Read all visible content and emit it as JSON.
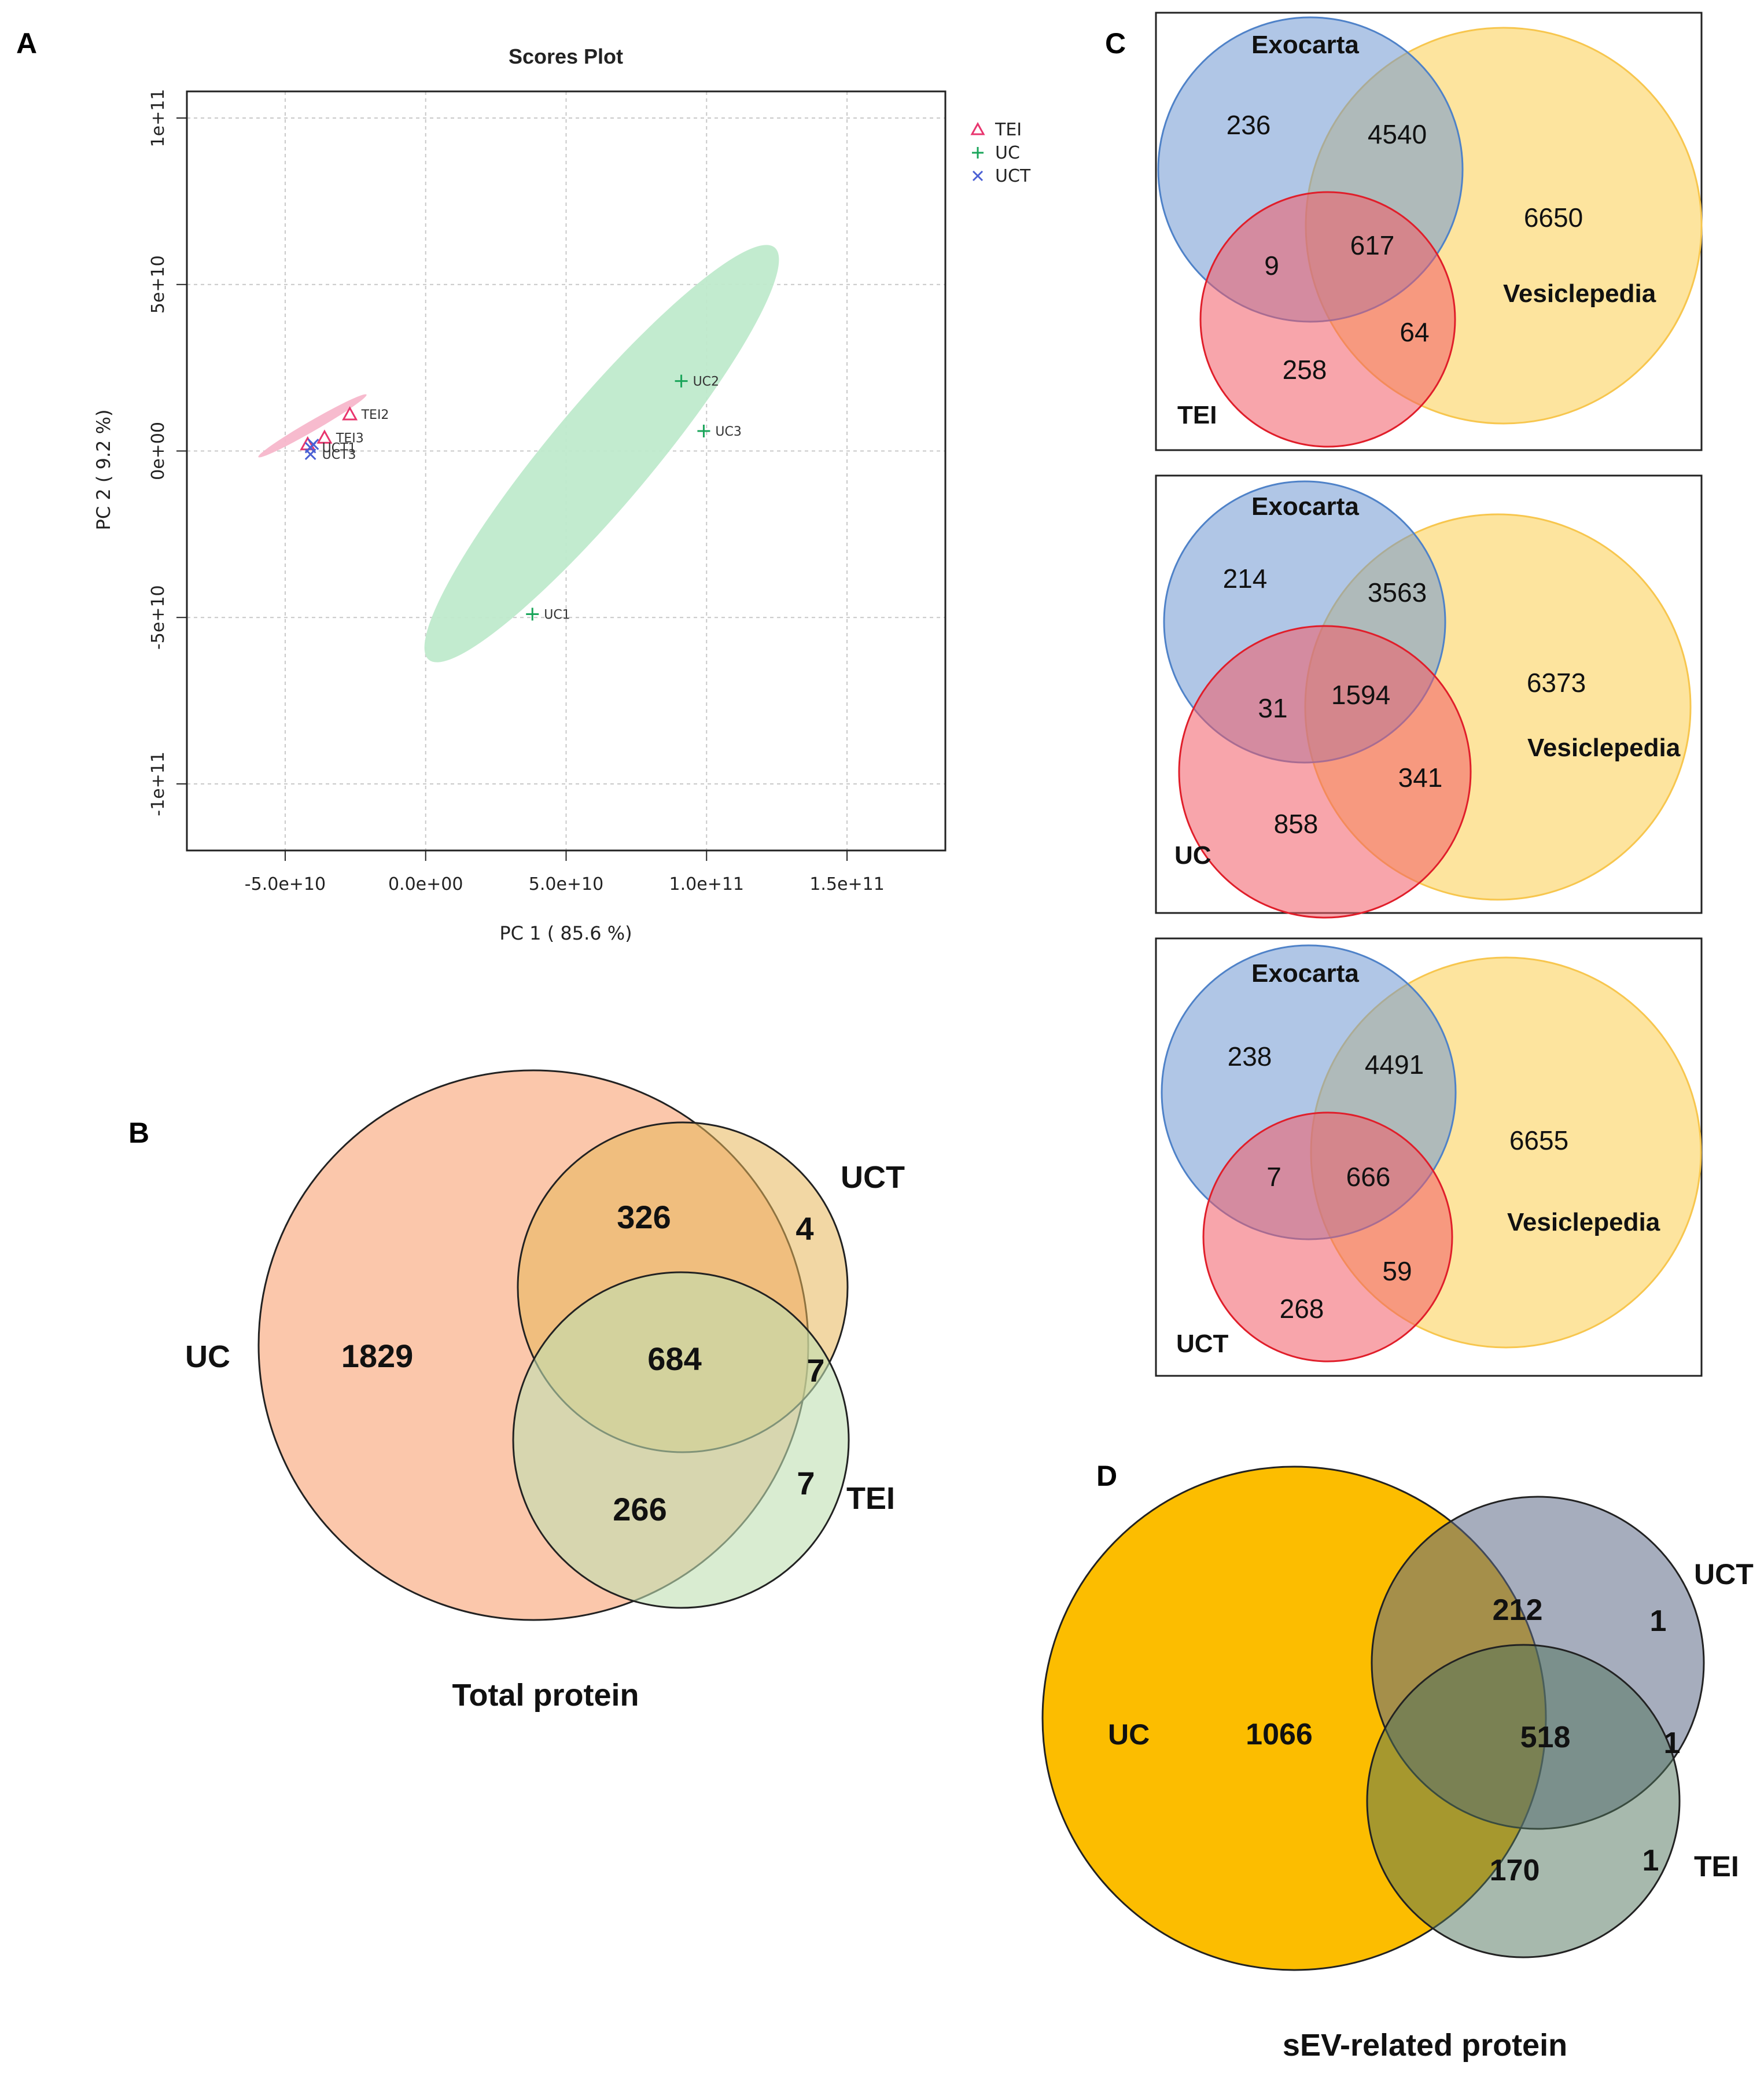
{
  "panel_labels": {
    "a": "A",
    "b": "B",
    "c": "C",
    "d": "D"
  },
  "chart_data": [
    {
      "type": "scatter",
      "panel": "A",
      "title": "Scores Plot",
      "xlabel": "PC 1 ( 85.6 %)",
      "ylabel": "PC 2 ( 9.2 %)",
      "xlim": [
        -85000000000.0,
        185000000000.0
      ],
      "ylim": [
        -120000000000.0,
        108000000000.0
      ],
      "grid": true,
      "legend_position": "top-right",
      "x_ticks": [
        {
          "value": -50000000000.0,
          "label": "-5.0e+10"
        },
        {
          "value": 0,
          "label": "0.0e+00"
        },
        {
          "value": 50000000000.0,
          "label": "5.0e+10"
        },
        {
          "value": 100000000000.0,
          "label": "1.0e+11"
        },
        {
          "value": 150000000000.0,
          "label": "1.5e+11"
        }
      ],
      "y_ticks": [
        {
          "value": -100000000000.0,
          "label": "-1e+11"
        },
        {
          "value": -50000000000.0,
          "label": "-5e+10"
        },
        {
          "value": 0,
          "label": "0e+00"
        },
        {
          "value": 50000000000.0,
          "label": "5e+10"
        },
        {
          "value": 100000000000.0,
          "label": "1e+11"
        }
      ],
      "series": [
        {
          "name": "TEI",
          "marker": "triangle",
          "color": "#e8356e",
          "points": [
            {
              "label": "TEI2",
              "x": -27000000000.0,
              "y": 11000000000.0
            },
            {
              "label": "TEI3",
              "x": -36000000000.0,
              "y": 4000000000.0
            },
            {
              "label": "TEI1",
              "x": -42000000000.0,
              "y": 2000000000.0
            }
          ]
        },
        {
          "name": "UC",
          "marker": "plus",
          "color": "#1aa55a",
          "points": [
            {
              "label": "UC2",
              "x": 91000000000.0,
              "y": 21000000000.0
            },
            {
              "label": "UC3",
              "x": 99000000000.0,
              "y": 6000000000.0
            },
            {
              "label": "UC1",
              "x": 38000000000.0,
              "y": -49000000000.0
            }
          ]
        },
        {
          "name": "UCT",
          "marker": "x",
          "color": "#4a5fd4",
          "points": [
            {
              "label": "UCT1",
              "x": -41000000000.0,
              "y": 1000000000.0
            },
            {
              "label": "UCT2",
              "x": -40000000000.0,
              "y": 2000000000.0
            },
            {
              "label": "UCT3",
              "x": -41000000000.0,
              "y": -1000000000.0
            }
          ]
        }
      ],
      "ellipses": [
        {
          "group": "UC",
          "color": "#bfeacc",
          "center": [
            70000000000.0,
            -10000000000.0
          ],
          "semi_major_data_x": 96000000000.0,
          "semi_minor": "narrow"
        },
        {
          "group": "TEI",
          "color": "#f7b7cb",
          "center": [
            -34000000000.0,
            5000000000.0
          ]
        }
      ],
      "legend": [
        "TEI",
        "UC",
        "UCT"
      ],
      "tick_labels_drawn": {
        "x": [
          "-5.0e+10",
          "0.0e+00",
          "5.0e+10",
          "1.0e+11",
          "1.5e+11"
        ],
        "y": [
          "-1e+11",
          "-5e+10",
          "0e+00",
          "5e+10",
          "1e+11"
        ]
      },
      "point_labels_drawn": [
        "TEI2",
        "TEI3",
        "UCT1",
        "UCT3",
        "UC2",
        "UC3",
        "UC1"
      ]
    },
    {
      "type": "venn",
      "panel": "B",
      "title": "Total protein",
      "sets": [
        "UC",
        "UCT",
        "TEI"
      ],
      "regions": [
        {
          "sets": [
            "UC"
          ],
          "value": "1829"
        },
        {
          "sets": [
            "UC",
            "UCT"
          ],
          "value": "326"
        },
        {
          "sets": [
            "UCT"
          ],
          "value": "4"
        },
        {
          "sets": [
            "UC",
            "UCT",
            "TEI"
          ],
          "value": "684"
        },
        {
          "sets": [
            "UCT",
            "TEI"
          ],
          "value": "7"
        },
        {
          "sets": [
            "UC",
            "TEI"
          ],
          "value": "266"
        },
        {
          "sets": [
            "TEI"
          ],
          "value": "7"
        }
      ]
    },
    {
      "type": "venn",
      "panel": "C",
      "subtitle": "TEI",
      "sets": [
        "Exocarta",
        "Vesiclepedia",
        "TEI"
      ],
      "regions": [
        {
          "sets": [
            "Exocarta"
          ],
          "value": "236"
        },
        {
          "sets": [
            "Exocarta",
            "Vesiclepedia"
          ],
          "value": "4540"
        },
        {
          "sets": [
            "Vesiclepedia"
          ],
          "value": "6650"
        },
        {
          "sets": [
            "Exocarta",
            "TEI"
          ],
          "value": "9"
        },
        {
          "sets": [
            "Exocarta",
            "Vesiclepedia",
            "TEI"
          ],
          "value": "617"
        },
        {
          "sets": [
            "Vesiclepedia",
            "TEI"
          ],
          "value": "64"
        },
        {
          "sets": [
            "TEI"
          ],
          "value": "258"
        }
      ]
    },
    {
      "type": "venn",
      "panel": "C",
      "subtitle": "UC",
      "sets": [
        "Exocarta",
        "Vesiclepedia",
        "UC"
      ],
      "regions": [
        {
          "sets": [
            "Exocarta"
          ],
          "value": "214"
        },
        {
          "sets": [
            "Exocarta",
            "Vesiclepedia"
          ],
          "value": "3563"
        },
        {
          "sets": [
            "Vesiclepedia"
          ],
          "value": "6373"
        },
        {
          "sets": [
            "Exocarta",
            "UC"
          ],
          "value": "31"
        },
        {
          "sets": [
            "Exocarta",
            "Vesiclepedia",
            "UC"
          ],
          "value": "1594"
        },
        {
          "sets": [
            "Vesiclepedia",
            "UC"
          ],
          "value": "341"
        },
        {
          "sets": [
            "UC"
          ],
          "value": "858"
        }
      ]
    },
    {
      "type": "venn",
      "panel": "C",
      "subtitle": "UCT",
      "sets": [
        "Exocarta",
        "Vesiclepedia",
        "UCT"
      ],
      "regions": [
        {
          "sets": [
            "Exocarta"
          ],
          "value": "238"
        },
        {
          "sets": [
            "Exocarta",
            "Vesiclepedia"
          ],
          "value": "4491"
        },
        {
          "sets": [
            "Vesiclepedia"
          ],
          "value": "6655"
        },
        {
          "sets": [
            "Exocarta",
            "UCT"
          ],
          "value": "7"
        },
        {
          "sets": [
            "Exocarta",
            "Vesiclepedia",
            "UCT"
          ],
          "value": "666"
        },
        {
          "sets": [
            "Vesiclepedia",
            "UCT"
          ],
          "value": "59"
        },
        {
          "sets": [
            "UCT"
          ],
          "value": "268"
        }
      ]
    },
    {
      "type": "venn",
      "panel": "D",
      "title": "sEV-related protein",
      "sets": [
        "UC",
        "UCT",
        "TEI"
      ],
      "regions": [
        {
          "sets": [
            "UC"
          ],
          "value": "1066"
        },
        {
          "sets": [
            "UC",
            "UCT"
          ],
          "value": "212"
        },
        {
          "sets": [
            "UCT"
          ],
          "value": "1"
        },
        {
          "sets": [
            "UC",
            "UCT",
            "TEI"
          ],
          "value": "518"
        },
        {
          "sets": [
            "UCT",
            "TEI"
          ],
          "value": "1"
        },
        {
          "sets": [
            "UC",
            "TEI"
          ],
          "value": "170"
        },
        {
          "sets": [
            "TEI"
          ],
          "value": "1"
        }
      ]
    }
  ]
}
